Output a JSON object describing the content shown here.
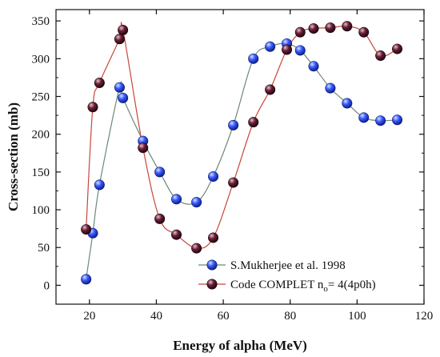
{
  "chart_data": {
    "type": "scatter",
    "xlabel": "Energy of alpha (MeV)",
    "ylabel": "Cross-section (mb)",
    "xlim": [
      10,
      120
    ],
    "ylim": [
      -25,
      365
    ],
    "xticks": [
      20,
      40,
      60,
      80,
      100,
      120
    ],
    "yticks": [
      0,
      50,
      100,
      150,
      200,
      250,
      300,
      350
    ],
    "xtick_labels": [
      "20",
      "40",
      "60",
      "80",
      "100",
      "120"
    ],
    "ytick_labels": [
      "0",
      "50",
      "100",
      "150",
      "200",
      "250",
      "300",
      "350"
    ],
    "grid": false,
    "legend_position": "bottom-right",
    "series": [
      {
        "name": "S.Mukherjee et al. 1998",
        "color": "#2f4fff",
        "line_color": "#6b8a78",
        "x": [
          19,
          21,
          23,
          29,
          30,
          36,
          41,
          46,
          52,
          57,
          63,
          69,
          74,
          79,
          83,
          87,
          92,
          97,
          102,
          107,
          112
        ],
        "y": [
          8,
          69,
          133,
          262,
          248,
          191,
          150,
          114,
          110,
          144,
          212,
          300,
          316,
          320,
          311,
          290,
          261,
          241,
          222,
          218,
          219
        ]
      },
      {
        "name_prefix": "Code COMPLET n",
        "name_sub": "o",
        "name_suffix": "= 4(4p0h)",
        "color": "#5a1a2e",
        "line_color": "#c8463a",
        "x": [
          19,
          21,
          23,
          29,
          30,
          36,
          41,
          46,
          52,
          57,
          63,
          69,
          74,
          79,
          83,
          87,
          92,
          97,
          102,
          107,
          112
        ],
        "y": [
          74,
          236,
          268,
          326,
          338,
          182,
          88,
          67,
          49,
          63,
          136,
          216,
          259,
          312,
          335,
          340,
          341,
          343,
          335,
          304,
          313
        ]
      }
    ]
  }
}
